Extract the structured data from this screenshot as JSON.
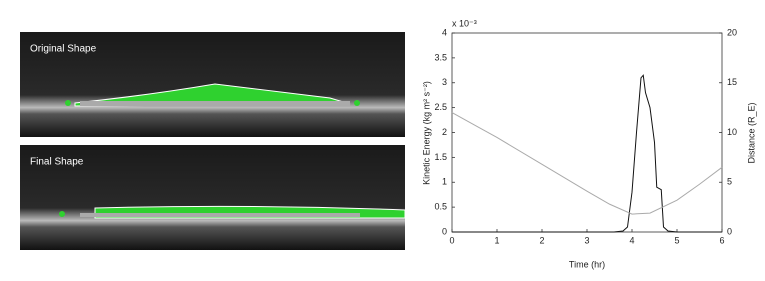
{
  "panels": [
    "Original Shape",
    "Final Shape"
  ],
  "chart_data": {
    "type": "line",
    "multiplier_label": "x 10⁻³",
    "xlabel": "Time (hr)",
    "ylabel": "Kinetic Energy (kg m² s⁻²)",
    "y2label": "Distance (R_E)",
    "xlim": [
      0,
      6
    ],
    "xticks": [
      0,
      1,
      2,
      3,
      4,
      5,
      6
    ],
    "ylim": [
      0,
      4
    ],
    "yticks": [
      0,
      0.5,
      1,
      1.5,
      2,
      2.5,
      3,
      3.5,
      4
    ],
    "y2lim": [
      0,
      20
    ],
    "y2ticks": [
      0,
      5,
      10,
      15,
      20
    ],
    "series": [
      {
        "color": "#111111",
        "x": [
          0,
          3.6,
          3.8,
          3.9,
          4.0,
          4.1,
          4.2,
          4.25,
          4.3,
          4.4,
          4.5,
          4.55,
          4.65,
          4.7,
          4.8,
          5,
          6
        ],
        "values": [
          0,
          0,
          0.02,
          0.1,
          0.8,
          2.0,
          3.1,
          3.15,
          2.8,
          2.5,
          1.8,
          0.9,
          0.85,
          0.1,
          0.02,
          0,
          0
        ]
      },
      {
        "color": "#aaaaaa",
        "axis": "y2",
        "x": [
          0,
          1,
          2,
          3,
          3.5,
          4,
          4.4,
          5,
          5.5,
          6
        ],
        "values": [
          12,
          9.5,
          6.8,
          4.1,
          2.8,
          1.8,
          1.9,
          3.2,
          4.8,
          6.5
        ]
      }
    ]
  }
}
